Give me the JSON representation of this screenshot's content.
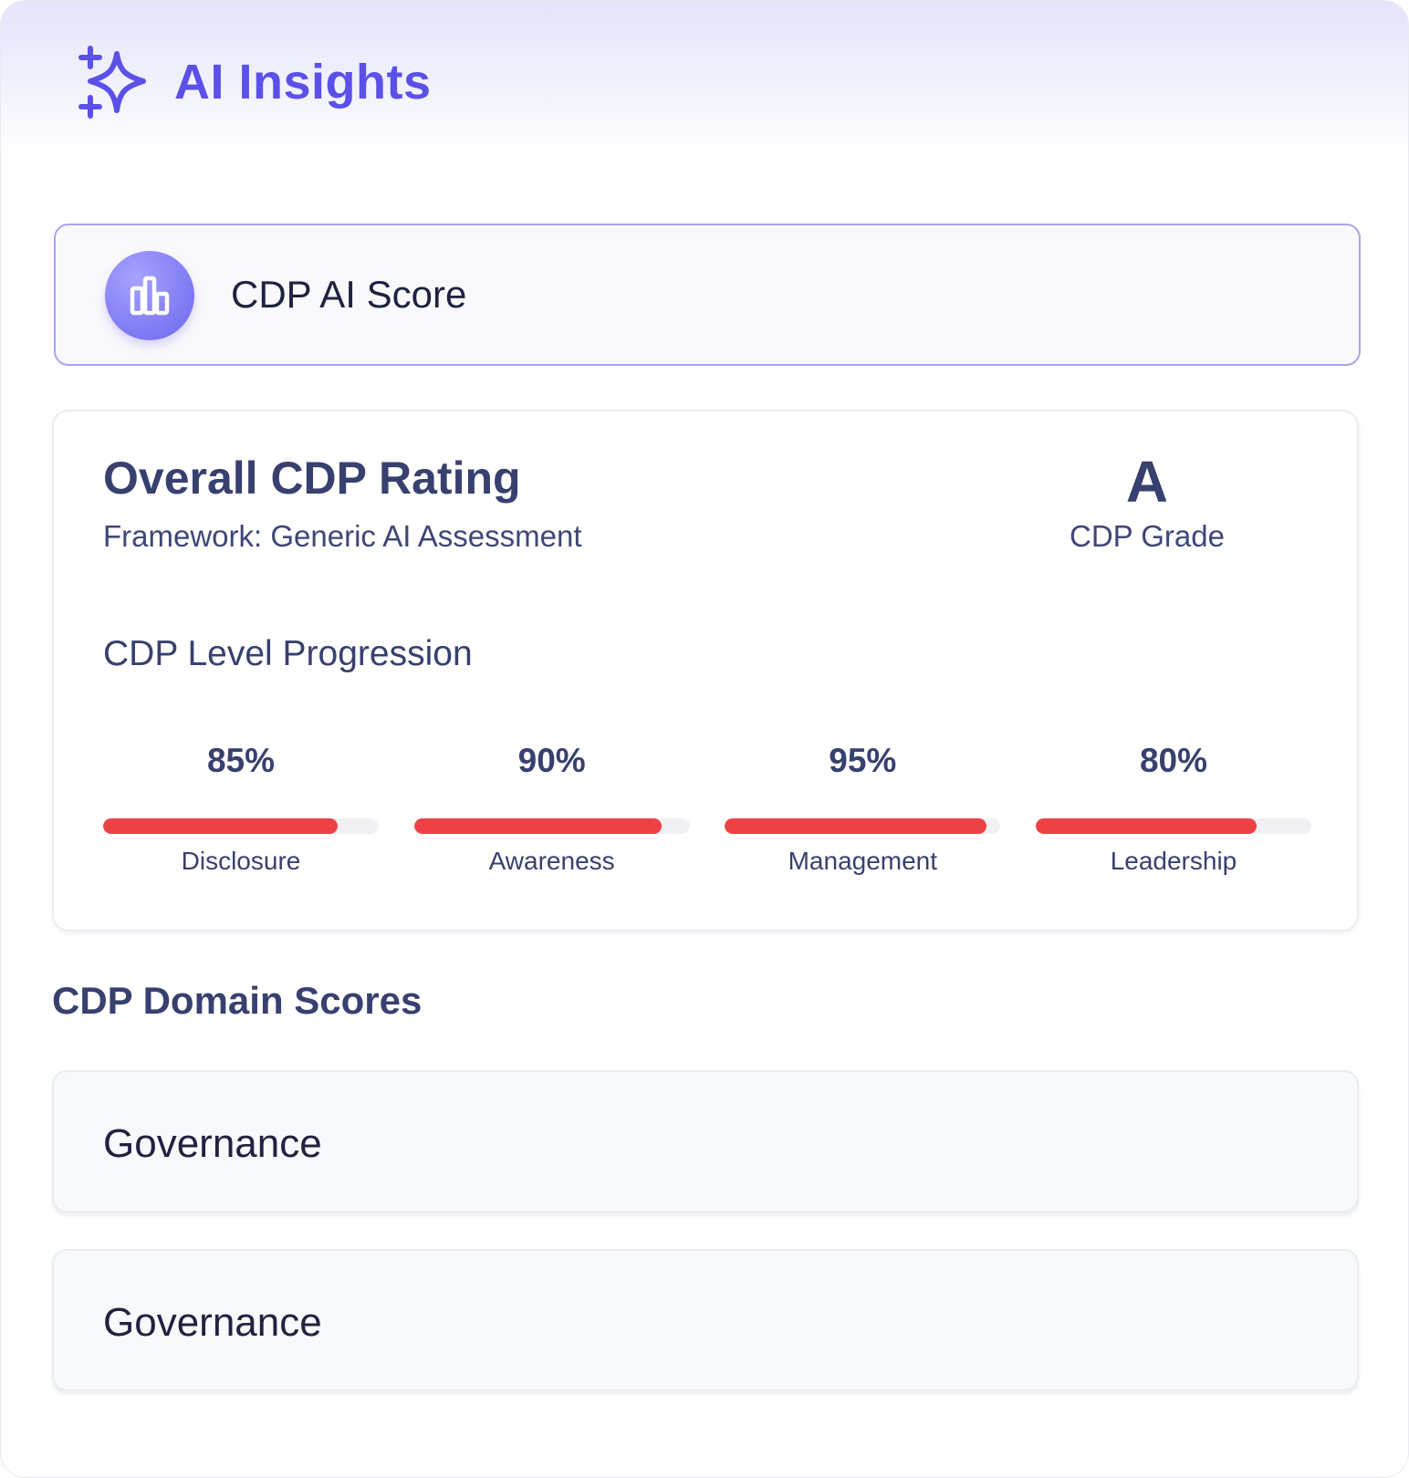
{
  "header": {
    "title": "AI Insights",
    "icon": "sparkles-icon",
    "accent_color": "#5b51e9"
  },
  "score_card": {
    "label": "CDP AI Score",
    "icon": "bar-chart-icon"
  },
  "rating": {
    "title": "Overall CDP Rating",
    "framework": "Framework: Generic AI Assessment",
    "grade": "A",
    "grade_caption": "CDP Grade",
    "progression_title": "CDP Level Progression",
    "levels": [
      {
        "label": "Disclosure",
        "percent_text": "85%",
        "value": 0.85
      },
      {
        "label": "Awareness",
        "percent_text": "90%",
        "value": 0.9
      },
      {
        "label": "Management",
        "percent_text": "95%",
        "value": 0.95
      },
      {
        "label": "Leadership",
        "percent_text": "80%",
        "value": 0.8
      }
    ],
    "bar_color": "#ec4245"
  },
  "domains": {
    "title": "CDP Domain Scores",
    "items": [
      {
        "name": "Governance"
      },
      {
        "name": "Governance"
      }
    ]
  }
}
